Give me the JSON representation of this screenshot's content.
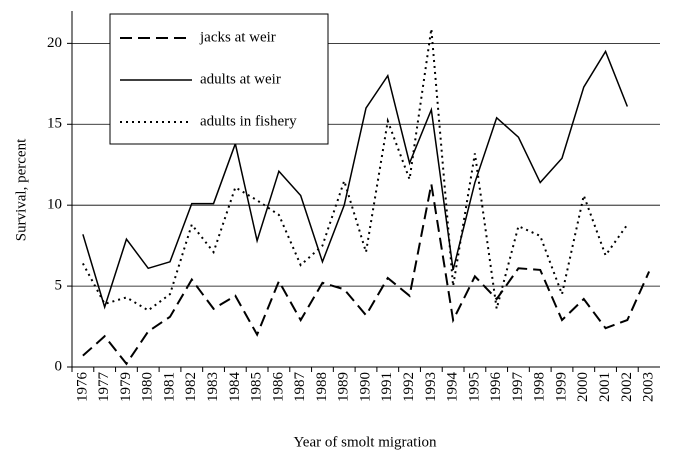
{
  "chart_data": {
    "type": "line",
    "y_label": "Survival, percent",
    "x_label": "Year of smolt migration",
    "categories": [
      "1976",
      "1977",
      "1979",
      "1980",
      "1981",
      "1982",
      "1983",
      "1984",
      "1985",
      "1986",
      "1987",
      "1988",
      "1989",
      "1990",
      "1991",
      "1992",
      "1993",
      "1994",
      "1995",
      "1996",
      "1997",
      "1998",
      "1999",
      "2000",
      "2001",
      "2002",
      "2003"
    ],
    "series": [
      {
        "name": "jacks at weir",
        "color": "#000000",
        "style": "dashed",
        "values": [
          0.7,
          1.9,
          0.2,
          2.2,
          3.1,
          5.4,
          3.6,
          4.4,
          2.0,
          5.3,
          2.9,
          5.2,
          4.8,
          3.2,
          5.5,
          4.4,
          11.3,
          2.9,
          5.6,
          4.2,
          6.1,
          6.0,
          2.9,
          4.2,
          2.4,
          2.9,
          5.9
        ]
      },
      {
        "name": "adults at weir",
        "color": "#000000",
        "style": "solid",
        "values": [
          8.2,
          3.7,
          7.9,
          6.1,
          6.5,
          10.1,
          10.1,
          13.8,
          7.8,
          12.1,
          10.6,
          6.5,
          10.0,
          16.0,
          18.0,
          12.6,
          15.9,
          6.0,
          11.4,
          15.4,
          14.2,
          11.4,
          12.9,
          17.3,
          19.5,
          16.1,
          null
        ]
      },
      {
        "name": "adults in fishery",
        "color": "#000000",
        "style": "dotted",
        "values": [
          6.4,
          3.9,
          4.3,
          3.5,
          4.5,
          8.8,
          7.1,
          11.1,
          10.3,
          9.4,
          6.3,
          7.5,
          11.5,
          7.1,
          15.2,
          11.6,
          20.9,
          5.0,
          13.2,
          3.6,
          8.7,
          8.1,
          4.5,
          10.6,
          6.9,
          8.8,
          null
        ]
      }
    ],
    "ylim": [
      0,
      22
    ],
    "yticks": [
      0,
      5,
      10,
      15,
      20
    ],
    "grid": true
  }
}
